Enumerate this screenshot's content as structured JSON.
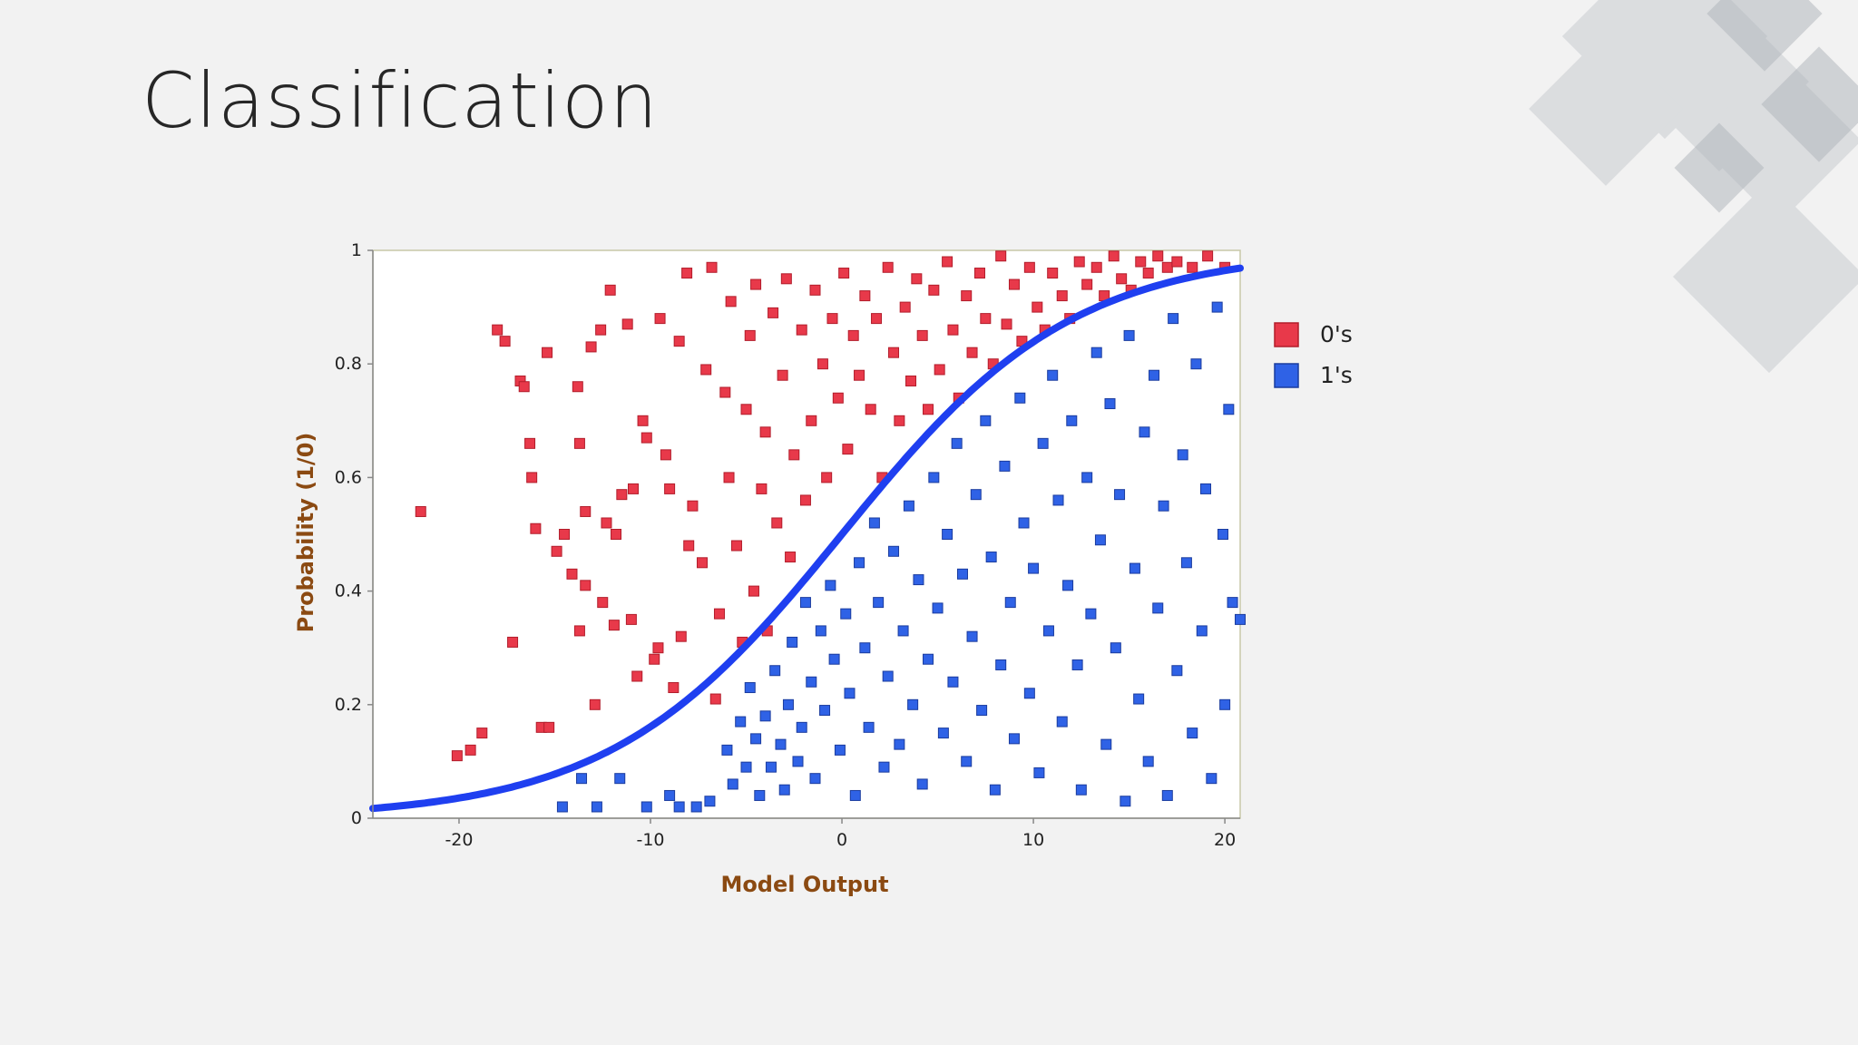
{
  "slide": {
    "title": "Classification"
  },
  "colors": {
    "zeros": "#e8394a",
    "ones": "#2f62e6",
    "curve": "#1f3ff0",
    "axis_label": "#8b4a12"
  },
  "chart_data": {
    "type": "scatter",
    "title": "",
    "xlabel": "Model Output",
    "ylabel": "Probability (1/0)",
    "xlim": [
      -24.5,
      20.8
    ],
    "ylim": [
      0,
      1
    ],
    "x_ticks": [
      -20,
      -10,
      0,
      10,
      20
    ],
    "y_ticks": [
      0,
      0.2,
      0.4,
      0.6,
      0.8,
      1
    ],
    "y_tick_labels": [
      "0",
      "0.2",
      "0.4",
      "0.6",
      "0.8",
      "1"
    ],
    "grid": false,
    "legend": {
      "position": "right",
      "entries": [
        "0's",
        "1's"
      ]
    },
    "series": [
      {
        "name": "0's",
        "marker": "square",
        "points": [
          [
            -22.0,
            0.54
          ],
          [
            -20.1,
            0.11
          ],
          [
            -19.4,
            0.12
          ],
          [
            -18.8,
            0.15
          ],
          [
            -18.0,
            0.86
          ],
          [
            -17.6,
            0.84
          ],
          [
            -17.2,
            0.31
          ],
          [
            -16.8,
            0.77
          ],
          [
            -16.6,
            0.76
          ],
          [
            -16.3,
            0.66
          ],
          [
            -16.2,
            0.6
          ],
          [
            -16.0,
            0.51
          ],
          [
            -15.7,
            0.16
          ],
          [
            -15.4,
            0.82
          ],
          [
            -15.3,
            0.16
          ],
          [
            -14.9,
            0.47
          ],
          [
            -14.5,
            0.5
          ],
          [
            -14.1,
            0.43
          ],
          [
            -13.8,
            0.76
          ],
          [
            -13.7,
            0.66
          ],
          [
            -13.7,
            0.33
          ],
          [
            -13.4,
            0.54
          ],
          [
            -13.4,
            0.41
          ],
          [
            -13.1,
            0.83
          ],
          [
            -12.9,
            0.2
          ],
          [
            -12.6,
            0.86
          ],
          [
            -12.5,
            0.38
          ],
          [
            -12.3,
            0.52
          ],
          [
            -12.1,
            0.93
          ],
          [
            -11.9,
            0.34
          ],
          [
            -11.8,
            0.5
          ],
          [
            -11.5,
            0.57
          ],
          [
            -11.2,
            0.87
          ],
          [
            -11.0,
            0.35
          ],
          [
            -10.9,
            0.58
          ],
          [
            -10.7,
            0.25
          ],
          [
            -10.4,
            0.7
          ],
          [
            -10.2,
            0.67
          ],
          [
            -9.8,
            0.28
          ],
          [
            -9.6,
            0.3
          ],
          [
            -9.5,
            0.88
          ],
          [
            -9.2,
            0.64
          ],
          [
            -9.0,
            0.58
          ],
          [
            -8.8,
            0.23
          ],
          [
            -8.5,
            0.84
          ],
          [
            -8.4,
            0.32
          ],
          [
            -8.1,
            0.96
          ],
          [
            -8.0,
            0.48
          ],
          [
            -7.8,
            0.55
          ],
          [
            -7.3,
            0.45
          ],
          [
            -7.1,
            0.79
          ],
          [
            -6.8,
            0.97
          ],
          [
            -6.6,
            0.21
          ],
          [
            -6.4,
            0.36
          ],
          [
            -6.1,
            0.75
          ],
          [
            -5.9,
            0.6
          ],
          [
            -5.8,
            0.91
          ],
          [
            -5.5,
            0.48
          ],
          [
            -5.2,
            0.31
          ],
          [
            -5.0,
            0.72
          ],
          [
            -4.8,
            0.85
          ],
          [
            -4.6,
            0.4
          ],
          [
            -4.5,
            0.94
          ],
          [
            -4.2,
            0.58
          ],
          [
            -4.0,
            0.68
          ],
          [
            -3.9,
            0.33
          ],
          [
            -3.6,
            0.89
          ],
          [
            -3.4,
            0.52
          ],
          [
            -3.1,
            0.78
          ],
          [
            -2.9,
            0.95
          ],
          [
            -2.7,
            0.46
          ],
          [
            -2.5,
            0.64
          ],
          [
            -2.1,
            0.86
          ],
          [
            -1.9,
            0.56
          ],
          [
            -1.6,
            0.7
          ],
          [
            -1.4,
            0.93
          ],
          [
            -1.0,
            0.8
          ],
          [
            -0.8,
            0.6
          ],
          [
            -0.5,
            0.88
          ],
          [
            -0.2,
            0.74
          ],
          [
            0.1,
            0.96
          ],
          [
            0.3,
            0.65
          ],
          [
            0.6,
            0.85
          ],
          [
            0.9,
            0.78
          ],
          [
            1.2,
            0.92
          ],
          [
            1.5,
            0.72
          ],
          [
            1.8,
            0.88
          ],
          [
            2.1,
            0.6
          ],
          [
            2.4,
            0.97
          ],
          [
            2.7,
            0.82
          ],
          [
            3.0,
            0.7
          ],
          [
            3.3,
            0.9
          ],
          [
            3.6,
            0.77
          ],
          [
            3.9,
            0.95
          ],
          [
            4.2,
            0.85
          ],
          [
            4.5,
            0.72
          ],
          [
            4.8,
            0.93
          ],
          [
            5.1,
            0.79
          ],
          [
            5.5,
            0.98
          ],
          [
            5.8,
            0.86
          ],
          [
            6.1,
            0.74
          ],
          [
            6.5,
            0.92
          ],
          [
            6.8,
            0.82
          ],
          [
            7.2,
            0.96
          ],
          [
            7.5,
            0.88
          ],
          [
            7.9,
            0.8
          ],
          [
            8.3,
            0.99
          ],
          [
            8.6,
            0.87
          ],
          [
            9.0,
            0.94
          ],
          [
            9.4,
            0.84
          ],
          [
            9.8,
            0.97
          ],
          [
            10.2,
            0.9
          ],
          [
            10.6,
            0.86
          ],
          [
            11.0,
            0.96
          ],
          [
            11.5,
            0.92
          ],
          [
            11.9,
            0.88
          ],
          [
            12.4,
            0.98
          ],
          [
            12.8,
            0.94
          ],
          [
            13.3,
            0.97
          ],
          [
            13.7,
            0.92
          ],
          [
            14.2,
            0.99
          ],
          [
            14.6,
            0.95
          ],
          [
            15.1,
            0.93
          ],
          [
            15.6,
            0.98
          ],
          [
            16.0,
            0.96
          ],
          [
            16.5,
            0.99
          ],
          [
            17.0,
            0.97
          ],
          [
            17.5,
            0.98
          ],
          [
            18.3,
            0.97
          ],
          [
            19.1,
            0.99
          ],
          [
            20.0,
            0.97
          ]
        ]
      },
      {
        "name": "1's",
        "marker": "square",
        "points": [
          [
            -14.6,
            0.02
          ],
          [
            -13.6,
            0.07
          ],
          [
            -12.8,
            0.02
          ],
          [
            -11.6,
            0.07
          ],
          [
            -10.2,
            0.02
          ],
          [
            -9.0,
            0.04
          ],
          [
            -8.5,
            0.02
          ],
          [
            -7.6,
            0.02
          ],
          [
            -6.9,
            0.03
          ],
          [
            -6.0,
            0.12
          ],
          [
            -5.7,
            0.06
          ],
          [
            -5.3,
            0.17
          ],
          [
            -5.0,
            0.09
          ],
          [
            -4.8,
            0.23
          ],
          [
            -4.5,
            0.14
          ],
          [
            -4.3,
            0.04
          ],
          [
            -4.0,
            0.18
          ],
          [
            -3.7,
            0.09
          ],
          [
            -3.5,
            0.26
          ],
          [
            -3.2,
            0.13
          ],
          [
            -3.0,
            0.05
          ],
          [
            -2.8,
            0.2
          ],
          [
            -2.6,
            0.31
          ],
          [
            -2.3,
            0.1
          ],
          [
            -2.1,
            0.16
          ],
          [
            -1.9,
            0.38
          ],
          [
            -1.6,
            0.24
          ],
          [
            -1.4,
            0.07
          ],
          [
            -1.1,
            0.33
          ],
          [
            -0.9,
            0.19
          ],
          [
            -0.6,
            0.41
          ],
          [
            -0.4,
            0.28
          ],
          [
            -0.1,
            0.12
          ],
          [
            0.2,
            0.36
          ],
          [
            0.4,
            0.22
          ],
          [
            0.7,
            0.04
          ],
          [
            0.9,
            0.45
          ],
          [
            1.2,
            0.3
          ],
          [
            1.4,
            0.16
          ],
          [
            1.7,
            0.52
          ],
          [
            1.9,
            0.38
          ],
          [
            2.2,
            0.09
          ],
          [
            2.4,
            0.25
          ],
          [
            2.7,
            0.47
          ],
          [
            3.0,
            0.13
          ],
          [
            3.2,
            0.33
          ],
          [
            3.5,
            0.55
          ],
          [
            3.7,
            0.2
          ],
          [
            4.0,
            0.42
          ],
          [
            4.2,
            0.06
          ],
          [
            4.5,
            0.28
          ],
          [
            4.8,
            0.6
          ],
          [
            5.0,
            0.37
          ],
          [
            5.3,
            0.15
          ],
          [
            5.5,
            0.5
          ],
          [
            5.8,
            0.24
          ],
          [
            6.0,
            0.66
          ],
          [
            6.3,
            0.43
          ],
          [
            6.5,
            0.1
          ],
          [
            6.8,
            0.32
          ],
          [
            7.0,
            0.57
          ],
          [
            7.3,
            0.19
          ],
          [
            7.5,
            0.7
          ],
          [
            7.8,
            0.46
          ],
          [
            8.0,
            0.05
          ],
          [
            8.3,
            0.27
          ],
          [
            8.5,
            0.62
          ],
          [
            8.8,
            0.38
          ],
          [
            9.0,
            0.14
          ],
          [
            9.3,
            0.74
          ],
          [
            9.5,
            0.52
          ],
          [
            9.8,
            0.22
          ],
          [
            10.0,
            0.44
          ],
          [
            10.3,
            0.08
          ],
          [
            10.5,
            0.66
          ],
          [
            10.8,
            0.33
          ],
          [
            11.0,
            0.78
          ],
          [
            11.3,
            0.56
          ],
          [
            11.5,
            0.17
          ],
          [
            11.8,
            0.41
          ],
          [
            12.0,
            0.7
          ],
          [
            12.3,
            0.27
          ],
          [
            12.5,
            0.05
          ],
          [
            12.8,
            0.6
          ],
          [
            13.0,
            0.36
          ],
          [
            13.3,
            0.82
          ],
          [
            13.5,
            0.49
          ],
          [
            13.8,
            0.13
          ],
          [
            14.0,
            0.73
          ],
          [
            14.3,
            0.3
          ],
          [
            14.5,
            0.57
          ],
          [
            14.8,
            0.03
          ],
          [
            15.0,
            0.85
          ],
          [
            15.3,
            0.44
          ],
          [
            15.5,
            0.21
          ],
          [
            15.8,
            0.68
          ],
          [
            16.0,
            0.1
          ],
          [
            16.3,
            0.78
          ],
          [
            16.5,
            0.37
          ],
          [
            16.8,
            0.55
          ],
          [
            17.0,
            0.04
          ],
          [
            17.3,
            0.88
          ],
          [
            17.5,
            0.26
          ],
          [
            17.8,
            0.64
          ],
          [
            18.0,
            0.45
          ],
          [
            18.3,
            0.15
          ],
          [
            18.5,
            0.8
          ],
          [
            18.8,
            0.33
          ],
          [
            19.0,
            0.58
          ],
          [
            19.3,
            0.07
          ],
          [
            19.6,
            0.9
          ],
          [
            19.9,
            0.5
          ],
          [
            20.0,
            0.2
          ],
          [
            20.2,
            0.72
          ],
          [
            20.4,
            0.38
          ],
          [
            20.8,
            0.35
          ]
        ]
      }
    ],
    "curve": {
      "name": "fit",
      "k": 0.165,
      "x0": 0.0
    }
  }
}
